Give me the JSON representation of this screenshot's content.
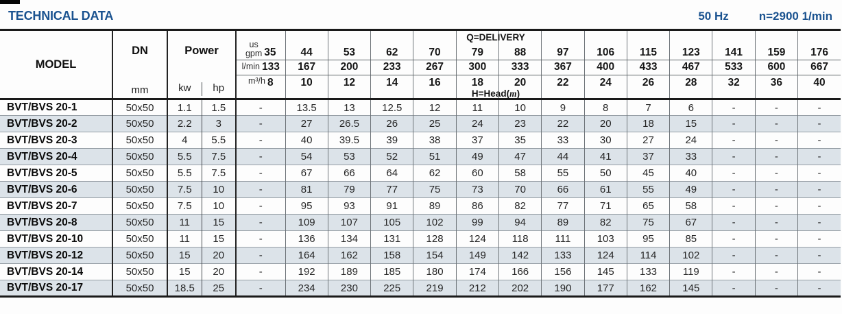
{
  "header": {
    "title": "TECHNICAL DATA",
    "frequency": "50 Hz",
    "speed": "n=2900 1/min"
  },
  "table": {
    "model_label": "MODEL",
    "dn_label": "DN",
    "dn_unit": "mm",
    "power_label": "Power",
    "power_units": [
      "kw",
      "hp"
    ],
    "delivery_label": "Q=DELIVERY",
    "head_label": {
      "pre": "H=Head(",
      "m": "m",
      "post": ")"
    },
    "flow_rows": [
      {
        "unit_top": "us",
        "unit": "gpm",
        "values": [
          "35",
          "44",
          "53",
          "62",
          "70",
          "79",
          "88",
          "97",
          "106",
          "115",
          "123",
          "141",
          "159",
          "176"
        ]
      },
      {
        "unit": "l/min",
        "values": [
          "133",
          "167",
          "200",
          "233",
          "267",
          "300",
          "333",
          "367",
          "400",
          "433",
          "467",
          "533",
          "600",
          "667"
        ]
      },
      {
        "unit": "m³/h",
        "values": [
          "8",
          "10",
          "12",
          "14",
          "16",
          "18",
          "20",
          "22",
          "24",
          "26",
          "28",
          "32",
          "36",
          "40"
        ]
      }
    ],
    "rows": [
      {
        "model": "BVT/BVS 20-1",
        "dn": "50x50",
        "kw": "1.1",
        "hp": "1.5",
        "head": [
          "-",
          "13.5",
          "13",
          "12.5",
          "12",
          "11",
          "10",
          "9",
          "8",
          "7",
          "6",
          "-",
          "-",
          "-"
        ]
      },
      {
        "model": "BVT/BVS 20-2",
        "dn": "50x50",
        "kw": "2.2",
        "hp": "3",
        "head": [
          "-",
          "27",
          "26.5",
          "26",
          "25",
          "24",
          "23",
          "22",
          "20",
          "18",
          "15",
          "-",
          "-",
          "-"
        ]
      },
      {
        "model": "BVT/BVS 20-3",
        "dn": "50x50",
        "kw": "4",
        "hp": "5.5",
        "head": [
          "-",
          "40",
          "39.5",
          "39",
          "38",
          "37",
          "35",
          "33",
          "30",
          "27",
          "24",
          "-",
          "-",
          "-"
        ]
      },
      {
        "model": "BVT/BVS 20-4",
        "dn": "50x50",
        "kw": "5.5",
        "hp": "7.5",
        "head": [
          "-",
          "54",
          "53",
          "52",
          "51",
          "49",
          "47",
          "44",
          "41",
          "37",
          "33",
          "-",
          "-",
          "-"
        ]
      },
      {
        "model": "BVT/BVS 20-5",
        "dn": "50x50",
        "kw": "5.5",
        "hp": "7.5",
        "head": [
          "-",
          "67",
          "66",
          "64",
          "62",
          "60",
          "58",
          "55",
          "50",
          "45",
          "40",
          "-",
          "-",
          "-"
        ]
      },
      {
        "model": "BVT/BVS 20-6",
        "dn": "50x50",
        "kw": "7.5",
        "hp": "10",
        "head": [
          "-",
          "81",
          "79",
          "77",
          "75",
          "73",
          "70",
          "66",
          "61",
          "55",
          "49",
          "-",
          "-",
          "-"
        ]
      },
      {
        "model": "BVT/BVS 20-7",
        "dn": "50x50",
        "kw": "7.5",
        "hp": "10",
        "head": [
          "-",
          "95",
          "93",
          "91",
          "89",
          "86",
          "82",
          "77",
          "71",
          "65",
          "58",
          "-",
          "-",
          "-"
        ]
      },
      {
        "model": "BVT/BVS 20-8",
        "dn": "50x50",
        "kw": "11",
        "hp": "15",
        "head": [
          "-",
          "109",
          "107",
          "105",
          "102",
          "99",
          "94",
          "89",
          "82",
          "75",
          "67",
          "-",
          "-",
          "-"
        ]
      },
      {
        "model": "BVT/BVS 20-10",
        "dn": "50x50",
        "kw": "11",
        "hp": "15",
        "head": [
          "-",
          "136",
          "134",
          "131",
          "128",
          "124",
          "118",
          "111",
          "103",
          "95",
          "85",
          "-",
          "-",
          "-"
        ]
      },
      {
        "model": "BVT/BVS 20-12",
        "dn": "50x50",
        "kw": "15",
        "hp": "20",
        "head": [
          "-",
          "164",
          "162",
          "158",
          "154",
          "149",
          "142",
          "133",
          "124",
          "114",
          "102",
          "-",
          "-",
          "-"
        ]
      },
      {
        "model": "BVT/BVS 20-14",
        "dn": "50x50",
        "kw": "15",
        "hp": "20",
        "head": [
          "-",
          "192",
          "189",
          "185",
          "180",
          "174",
          "166",
          "156",
          "145",
          "133",
          "119",
          "-",
          "-",
          "-"
        ]
      },
      {
        "model": "BVT/BVS 20-17",
        "dn": "50x50",
        "kw": "18.5",
        "hp": "25",
        "head": [
          "-",
          "234",
          "230",
          "225",
          "219",
          "212",
          "202",
          "190",
          "177",
          "162",
          "145",
          "-",
          "-",
          "-"
        ]
      }
    ],
    "colors": {
      "accent_blue": "#1b5390",
      "row_stripe": "#dce3e9",
      "border_dark": "#1a1a1a"
    }
  }
}
